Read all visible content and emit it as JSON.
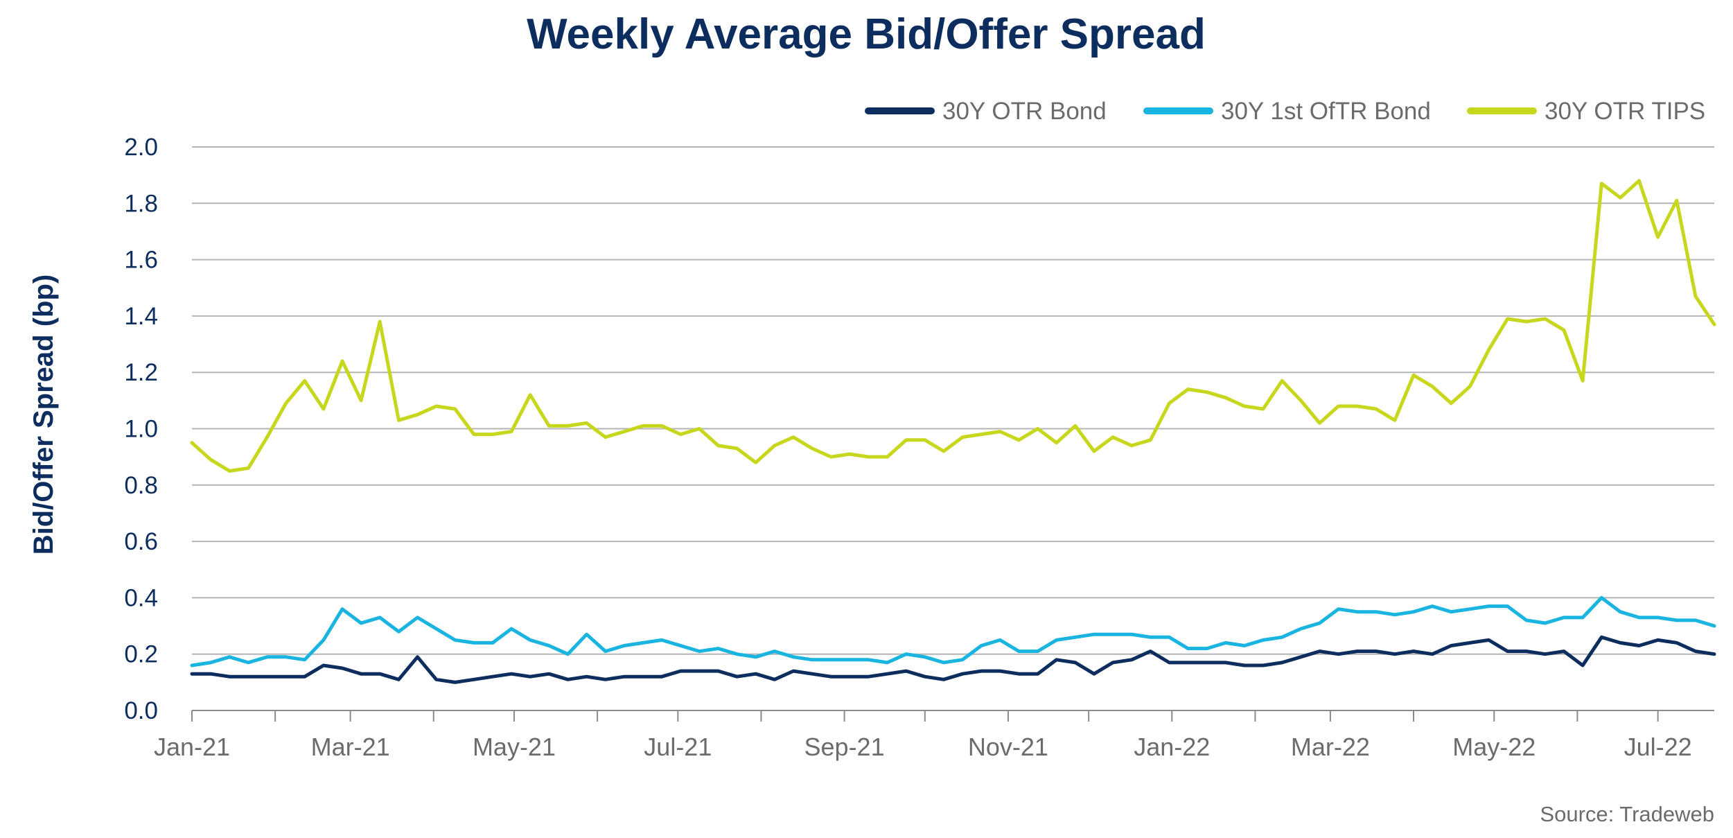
{
  "chart_data": {
    "type": "line",
    "title": "Weekly Average Bid/Offer Spread",
    "ylabel": "Bid/Offer Spread (bp)",
    "xlabel": "",
    "ylim": [
      0,
      2.0
    ],
    "yticks": [
      "0.0",
      "0.2",
      "0.4",
      "0.6",
      "0.8",
      "1.0",
      "1.2",
      "1.4",
      "1.6",
      "1.8",
      "2.0"
    ],
    "xticks": [
      "Jan-21",
      "Mar-21",
      "May-21",
      "Jul-21",
      "Sep-21",
      "Nov-21",
      "Jan-22",
      "Mar-22",
      "May-22",
      "Jul-22"
    ],
    "x_start": "2021-01-01",
    "grid": true,
    "legend_position": "top-right",
    "source": "Source: Tradeweb",
    "series": [
      {
        "name": "30Y OTR Bond",
        "color": "#0c2d5e",
        "values": [
          0.13,
          0.13,
          0.12,
          0.12,
          0.12,
          0.12,
          0.12,
          0.16,
          0.15,
          0.13,
          0.13,
          0.11,
          0.19,
          0.11,
          0.1,
          0.11,
          0.12,
          0.13,
          0.12,
          0.13,
          0.11,
          0.12,
          0.11,
          0.12,
          0.12,
          0.12,
          0.14,
          0.14,
          0.14,
          0.12,
          0.13,
          0.11,
          0.14,
          0.13,
          0.12,
          0.12,
          0.12,
          0.13,
          0.14,
          0.12,
          0.11,
          0.13,
          0.14,
          0.14,
          0.13,
          0.13,
          0.18,
          0.17,
          0.13,
          0.17,
          0.18,
          0.21,
          0.17,
          0.17,
          0.17,
          0.17,
          0.16,
          0.16,
          0.17,
          0.19,
          0.21,
          0.2,
          0.21,
          0.21,
          0.2,
          0.21,
          0.2,
          0.23,
          0.24,
          0.25,
          0.21,
          0.21,
          0.2,
          0.21,
          0.16,
          0.26,
          0.24,
          0.23,
          0.25,
          0.24,
          0.21,
          0.2
        ]
      },
      {
        "name": "30Y 1st OfTR Bond",
        "color": "#1ab4e0",
        "values": [
          0.16,
          0.17,
          0.19,
          0.17,
          0.19,
          0.19,
          0.18,
          0.25,
          0.36,
          0.31,
          0.33,
          0.28,
          0.33,
          0.29,
          0.25,
          0.24,
          0.24,
          0.29,
          0.25,
          0.23,
          0.2,
          0.27,
          0.21,
          0.23,
          0.24,
          0.25,
          0.23,
          0.21,
          0.22,
          0.2,
          0.19,
          0.21,
          0.19,
          0.18,
          0.18,
          0.18,
          0.18,
          0.17,
          0.2,
          0.19,
          0.17,
          0.18,
          0.23,
          0.25,
          0.21,
          0.21,
          0.25,
          0.26,
          0.27,
          0.27,
          0.27,
          0.26,
          0.26,
          0.22,
          0.22,
          0.24,
          0.23,
          0.25,
          0.26,
          0.29,
          0.31,
          0.36,
          0.35,
          0.35,
          0.34,
          0.35,
          0.37,
          0.35,
          0.36,
          0.37,
          0.37,
          0.32,
          0.31,
          0.33,
          0.33,
          0.4,
          0.35,
          0.33,
          0.33,
          0.32,
          0.32,
          0.3
        ]
      },
      {
        "name": "30Y OTR TIPS",
        "color": "#c7d71e",
        "values": [
          0.95,
          0.89,
          0.85,
          0.86,
          0.97,
          1.09,
          1.17,
          1.07,
          1.24,
          1.1,
          1.38,
          1.03,
          1.05,
          1.08,
          1.07,
          0.98,
          0.98,
          0.99,
          1.12,
          1.01,
          1.01,
          1.02,
          0.97,
          0.99,
          1.01,
          1.01,
          0.98,
          1.0,
          0.94,
          0.93,
          0.88,
          0.94,
          0.97,
          0.93,
          0.9,
          0.91,
          0.9,
          0.9,
          0.96,
          0.96,
          0.92,
          0.97,
          0.98,
          0.99,
          0.96,
          1.0,
          0.95,
          1.01,
          0.92,
          0.97,
          0.94,
          0.96,
          1.09,
          1.14,
          1.13,
          1.11,
          1.08,
          1.07,
          1.17,
          1.1,
          1.02,
          1.08,
          1.08,
          1.07,
          1.03,
          1.19,
          1.15,
          1.09,
          1.15,
          1.28,
          1.39,
          1.38,
          1.39,
          1.35,
          1.17,
          1.87,
          1.82,
          1.88,
          1.68,
          1.81,
          1.47,
          1.37
        ]
      }
    ]
  }
}
